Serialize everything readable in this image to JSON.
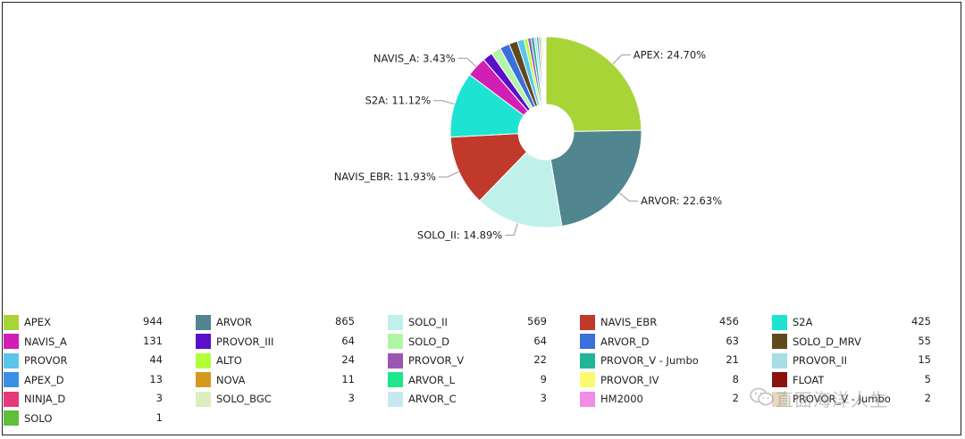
{
  "chart_data": {
    "type": "pie",
    "style": "donut",
    "title": "",
    "slices": [
      {
        "name": "APEX",
        "value": 944,
        "color": "#a8d438",
        "label": "APEX: 24.70%"
      },
      {
        "name": "ARVOR",
        "value": 865,
        "color": "#51858f",
        "label": "ARVOR: 22.63%"
      },
      {
        "name": "SOLO_II",
        "value": 569,
        "color": "#bff1ea",
        "label": "SOLO_II: 14.89%"
      },
      {
        "name": "NAVIS_EBR",
        "value": 456,
        "color": "#c0392b",
        "label": "NAVIS_EBR: 11.93%"
      },
      {
        "name": "S2A",
        "value": 425,
        "color": "#1de3d3",
        "label": "S2A: 11.12%"
      },
      {
        "name": "NAVIS_A",
        "value": 131,
        "color": "#d11fb5",
        "label": "NAVIS_A: 3.43%"
      },
      {
        "name": "PROVOR_III",
        "value": 64,
        "color": "#5b0fc8",
        "label": ""
      },
      {
        "name": "SOLO_D",
        "value": 64,
        "color": "#b2f5a8",
        "label": ""
      },
      {
        "name": "ARVOR_D",
        "value": 63,
        "color": "#3a6fdc",
        "label": ""
      },
      {
        "name": "SOLO_D_MRV",
        "value": 55,
        "color": "#5e4a1e",
        "label": ""
      },
      {
        "name": "PROVOR",
        "value": 44,
        "color": "#5bc6ec",
        "label": ""
      },
      {
        "name": "ALTO",
        "value": 24,
        "color": "#b2ff3a",
        "label": ""
      },
      {
        "name": "PROVOR_V",
        "value": 22,
        "color": "#9a56b4",
        "label": ""
      },
      {
        "name": "PROVOR_V - Jumbo",
        "value": 21,
        "color": "#1fb597",
        "label": ""
      },
      {
        "name": "PROVOR_II",
        "value": 15,
        "color": "#a8dde3",
        "label": ""
      },
      {
        "name": "APEX_D",
        "value": 13,
        "color": "#3a8fe6",
        "label": ""
      },
      {
        "name": "NOVA",
        "value": 11,
        "color": "#d49a1f",
        "label": ""
      },
      {
        "name": "ARVOR_L",
        "value": 9,
        "color": "#1fe68a",
        "label": ""
      },
      {
        "name": "PROVOR_IV",
        "value": 8,
        "color": "#fafa70",
        "label": ""
      },
      {
        "name": "FLOAT",
        "value": 5,
        "color": "#8b1010",
        "label": ""
      },
      {
        "name": "NINJA_D",
        "value": 3,
        "color": "#e63a78",
        "label": ""
      },
      {
        "name": "SOLO_BGC",
        "value": 3,
        "color": "#dcedc0",
        "label": ""
      },
      {
        "name": "ARVOR_C",
        "value": 3,
        "color": "#c8e8ef",
        "label": ""
      },
      {
        "name": "HM2000",
        "value": 2,
        "color": "#f38ce6",
        "label": ""
      },
      {
        "name": "PROVOR_V - Jumbo",
        "value": 2,
        "color": "#e9d8bf",
        "label": ""
      },
      {
        "name": "SOLO",
        "value": 1,
        "color": "#5fbf3a",
        "label": ""
      }
    ],
    "legend": {
      "placement": "bottom",
      "columns": 5
    }
  },
  "watermark": {
    "text": "直面海洋人生",
    "icon": "wechat-icon"
  }
}
